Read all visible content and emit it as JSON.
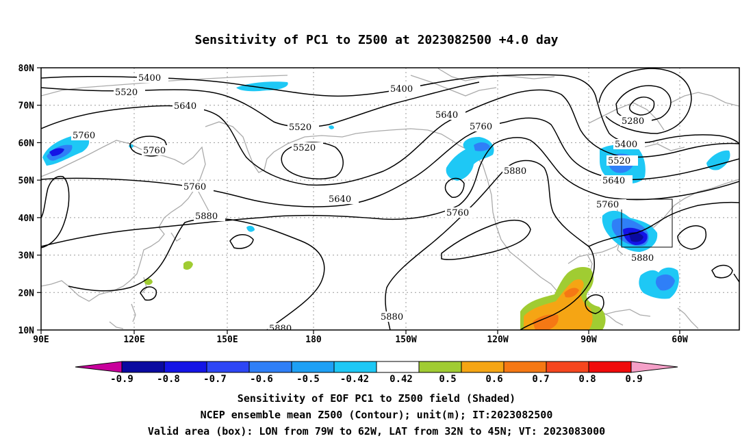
{
  "title": "Sensitivity of PC1 to Z500 at 2023082500 +4.0 day",
  "lat_labels": [
    "80N",
    "70N",
    "60N",
    "50N",
    "40N",
    "30N",
    "20N",
    "10N"
  ],
  "lon_labels": [
    "90E",
    "120E",
    "150E",
    "180",
    "150W",
    "120W",
    "90W",
    "60W"
  ],
  "contour_labels": [
    "5400",
    "5520",
    "5640",
    "5760",
    "5760",
    "5400",
    "5520",
    "5520",
    "5640",
    "5760",
    "5640",
    "5760",
    "5880",
    "5760",
    "5880",
    "5280",
    "5400",
    "5520",
    "5640",
    "5760",
    "5880",
    "5880",
    "5880"
  ],
  "colorbar": {
    "labels": [
      "-0.9",
      "-0.8",
      "-0.7",
      "-0.6",
      "-0.5",
      "-0.42",
      "0.42",
      "0.5",
      "0.6",
      "0.7",
      "0.8",
      "0.9"
    ],
    "colors": [
      "#c8009c",
      "#0a0aa0",
      "#1414e6",
      "#2d46f5",
      "#2f7ff7",
      "#1ea0f5",
      "#1ec8f5",
      "#ffffff",
      "#a0cc32",
      "#f5a514",
      "#f57814",
      "#f5461e",
      "#f00a0a",
      "#f5a0c8"
    ]
  },
  "captions": [
    "Sensitivity of EOF PC1 to Z500 field (Shaded)",
    "NCEP ensemble mean Z500 (Contour); unit(m); IT:2023082500",
    "Valid area (box): LON from 79W to 62W, LAT from 32N to 45N; VT: 2023083000"
  ]
}
